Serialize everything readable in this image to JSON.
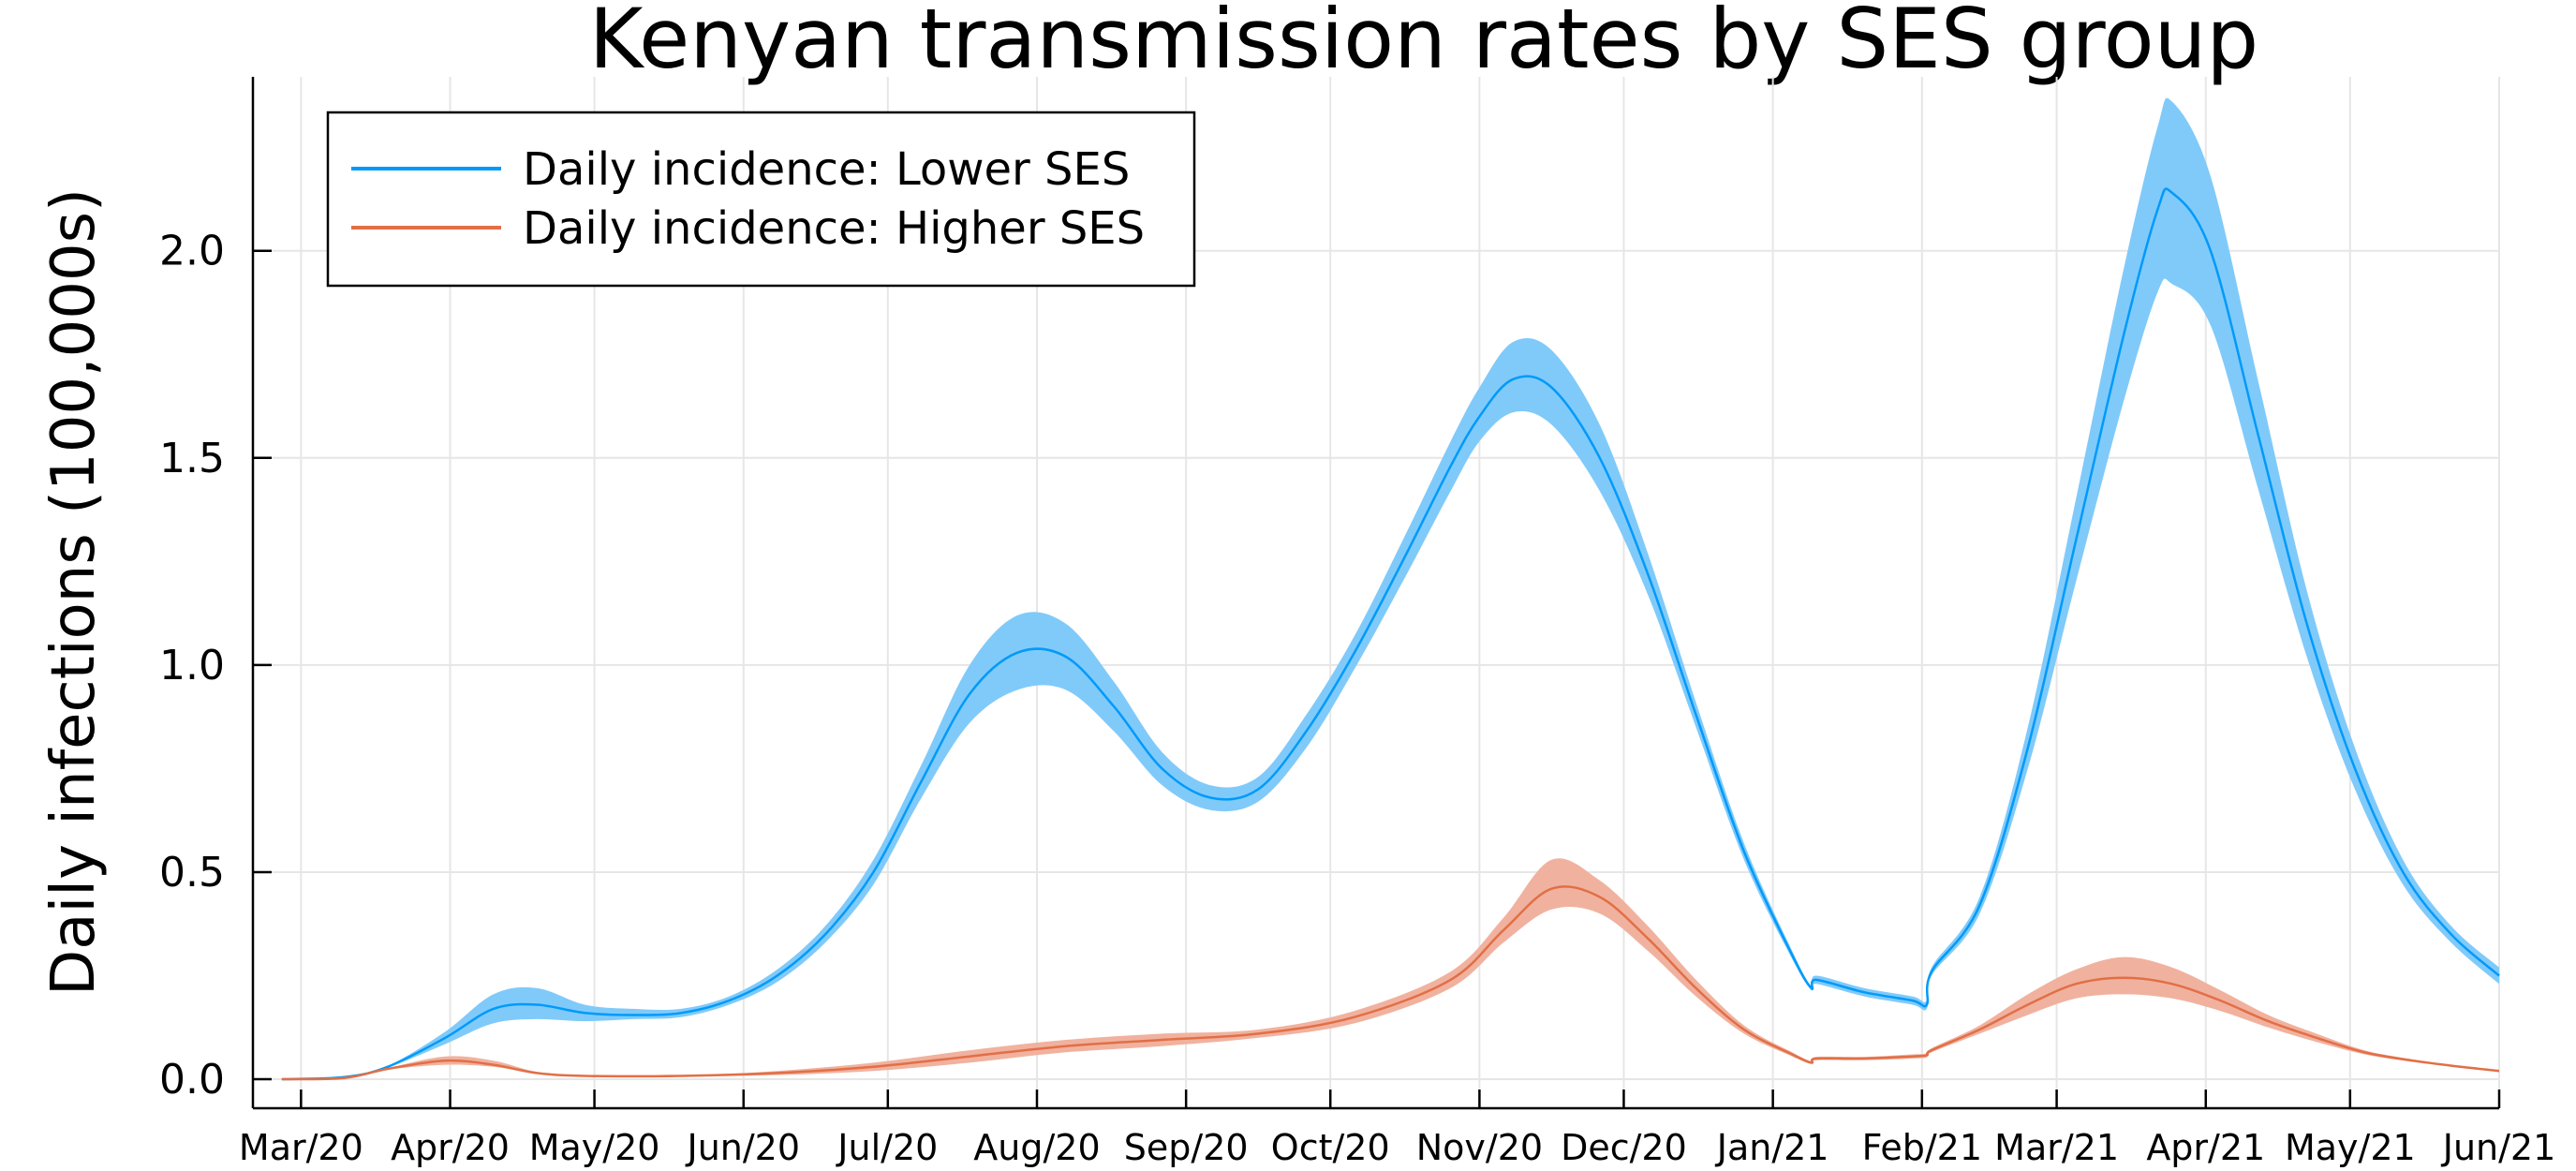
{
  "chart_data": {
    "type": "line",
    "title": "Kenyan transmission rates by SES group",
    "xlabel": "",
    "ylabel": "Daily infections (100,000s)",
    "x_ticks": [
      "Mar/20",
      "Apr/20",
      "May/20",
      "Jun/20",
      "Jul/20",
      "Aug/20",
      "Sep/20",
      "Oct/20",
      "Nov/20",
      "Dec/20",
      "Jan/21",
      "Feb/21",
      "Mar/21",
      "Apr/21",
      "May/21",
      "Jun/21"
    ],
    "x_tick_dates": [
      "2020-03-01",
      "2020-04-01",
      "2020-05-01",
      "2020-06-01",
      "2020-07-01",
      "2020-08-01",
      "2020-09-01",
      "2020-10-01",
      "2020-11-01",
      "2020-12-01",
      "2021-01-01",
      "2021-02-01",
      "2021-03-01",
      "2021-04-01",
      "2021-05-01",
      "2021-06-01"
    ],
    "y_ticks": [
      "0.0",
      "0.5",
      "1.0",
      "1.5",
      "2.0"
    ],
    "y_tick_values": [
      0,
      0.5,
      1.0,
      1.5,
      2.0
    ],
    "xlim": [
      "2020-02-20",
      "2021-06-01"
    ],
    "ylim": [
      -0.07,
      2.42
    ],
    "grid": true,
    "legend_position": "top-left",
    "series": [
      {
        "name": "Daily incidence: Lower SES",
        "color": "#009AFA",
        "band_color": "#80CAFA",
        "x": [
          "2020-02-26",
          "2020-03-10",
          "2020-03-19",
          "2020-03-31",
          "2020-04-10",
          "2020-04-19",
          "2020-04-29",
          "2020-05-09",
          "2020-05-19",
          "2020-05-29",
          "2020-06-08",
          "2020-06-18",
          "2020-06-28",
          "2020-07-08",
          "2020-07-18",
          "2020-07-28",
          "2020-08-07",
          "2020-08-17",
          "2020-08-27",
          "2020-09-06",
          "2020-09-16",
          "2020-09-26",
          "2020-10-06",
          "2020-10-16",
          "2020-10-26",
          "2020-11-01",
          "2020-11-08",
          "2020-11-16",
          "2020-11-26",
          "2020-12-06",
          "2020-12-16",
          "2020-12-26",
          "2021-01-05",
          "2021-01-09",
          "2021-01-10",
          "2021-01-20",
          "2021-01-30",
          "2021-02-02",
          "2021-02-03",
          "2021-02-13",
          "2021-02-23",
          "2021-03-05",
          "2021-03-15",
          "2021-03-22",
          "2021-03-25",
          "2021-04-02",
          "2021-04-12",
          "2021-04-22",
          "2021-05-02",
          "2021-05-12",
          "2021-05-22",
          "2021-06-01"
        ],
        "y": [
          0.0,
          0.005,
          0.03,
          0.1,
          0.17,
          0.18,
          0.16,
          0.155,
          0.16,
          0.19,
          0.25,
          0.35,
          0.5,
          0.72,
          0.93,
          1.03,
          1.02,
          0.9,
          0.75,
          0.68,
          0.7,
          0.84,
          1.03,
          1.25,
          1.48,
          1.6,
          1.69,
          1.67,
          1.5,
          1.22,
          0.88,
          0.55,
          0.3,
          0.22,
          0.24,
          0.21,
          0.19,
          0.18,
          0.26,
          0.42,
          0.8,
          1.3,
          1.8,
          2.1,
          2.14,
          2.0,
          1.55,
          1.1,
          0.75,
          0.5,
          0.35,
          0.25
        ],
        "lower": [
          0.0,
          0.005,
          0.028,
          0.085,
          0.135,
          0.145,
          0.14,
          0.145,
          0.15,
          0.18,
          0.235,
          0.33,
          0.47,
          0.68,
          0.86,
          0.94,
          0.94,
          0.84,
          0.71,
          0.65,
          0.67,
          0.8,
          0.99,
          1.2,
          1.42,
          1.54,
          1.61,
          1.58,
          1.42,
          1.17,
          0.85,
          0.53,
          0.29,
          0.215,
          0.23,
          0.2,
          0.18,
          0.17,
          0.25,
          0.4,
          0.75,
          1.2,
          1.64,
          1.9,
          1.92,
          1.82,
          1.42,
          1.02,
          0.7,
          0.47,
          0.33,
          0.23
        ],
        "upper": [
          0.0,
          0.005,
          0.032,
          0.115,
          0.205,
          0.22,
          0.18,
          0.17,
          0.17,
          0.2,
          0.265,
          0.37,
          0.53,
          0.76,
          1.0,
          1.12,
          1.1,
          0.96,
          0.79,
          0.71,
          0.73,
          0.88,
          1.07,
          1.3,
          1.54,
          1.67,
          1.78,
          1.76,
          1.58,
          1.27,
          0.91,
          0.57,
          0.31,
          0.225,
          0.25,
          0.22,
          0.2,
          0.19,
          0.27,
          0.44,
          0.85,
          1.4,
          1.96,
          2.3,
          2.36,
          2.18,
          1.68,
          1.18,
          0.8,
          0.53,
          0.37,
          0.27
        ]
      },
      {
        "name": "Daily incidence: Higher SES",
        "color": "#E26F46",
        "band_color": "#F0B29F",
        "x": [
          "2020-02-26",
          "2020-03-10",
          "2020-03-19",
          "2020-03-31",
          "2020-04-10",
          "2020-04-19",
          "2020-04-29",
          "2020-05-19",
          "2020-06-08",
          "2020-06-28",
          "2020-07-18",
          "2020-08-07",
          "2020-08-27",
          "2020-09-16",
          "2020-10-06",
          "2020-10-26",
          "2020-11-06",
          "2020-11-16",
          "2020-11-26",
          "2020-12-06",
          "2020-12-16",
          "2020-12-26",
          "2021-01-05",
          "2021-01-09",
          "2021-01-10",
          "2021-01-20",
          "2021-01-30",
          "2021-02-02",
          "2021-02-03",
          "2021-02-13",
          "2021-02-23",
          "2021-03-05",
          "2021-03-15",
          "2021-03-25",
          "2021-04-04",
          "2021-04-14",
          "2021-04-24",
          "2021-05-04",
          "2021-05-14",
          "2021-05-24",
          "2021-06-01"
        ],
        "y": [
          0.0,
          0.003,
          0.025,
          0.045,
          0.035,
          0.015,
          0.008,
          0.008,
          0.015,
          0.03,
          0.055,
          0.08,
          0.095,
          0.11,
          0.15,
          0.24,
          0.36,
          0.46,
          0.44,
          0.34,
          0.22,
          0.12,
          0.06,
          0.04,
          0.05,
          0.05,
          0.055,
          0.058,
          0.07,
          0.12,
          0.18,
          0.23,
          0.245,
          0.23,
          0.19,
          0.14,
          0.1,
          0.065,
          0.045,
          0.03,
          0.02
        ],
        "lower": [
          0.0,
          0.003,
          0.023,
          0.035,
          0.03,
          0.013,
          0.007,
          0.007,
          0.01,
          0.02,
          0.04,
          0.065,
          0.08,
          0.1,
          0.135,
          0.22,
          0.33,
          0.41,
          0.4,
          0.31,
          0.2,
          0.11,
          0.055,
          0.037,
          0.046,
          0.046,
          0.05,
          0.053,
          0.065,
          0.11,
          0.155,
          0.195,
          0.205,
          0.195,
          0.165,
          0.125,
          0.09,
          0.06,
          0.042,
          0.028,
          0.019
        ],
        "upper": [
          0.0,
          0.003,
          0.027,
          0.055,
          0.045,
          0.018,
          0.009,
          0.009,
          0.02,
          0.04,
          0.07,
          0.095,
          0.11,
          0.12,
          0.165,
          0.26,
          0.39,
          0.53,
          0.48,
          0.37,
          0.24,
          0.13,
          0.065,
          0.043,
          0.054,
          0.054,
          0.06,
          0.063,
          0.075,
          0.13,
          0.205,
          0.265,
          0.295,
          0.27,
          0.215,
          0.155,
          0.11,
          0.07,
          0.048,
          0.032,
          0.021
        ]
      }
    ]
  }
}
